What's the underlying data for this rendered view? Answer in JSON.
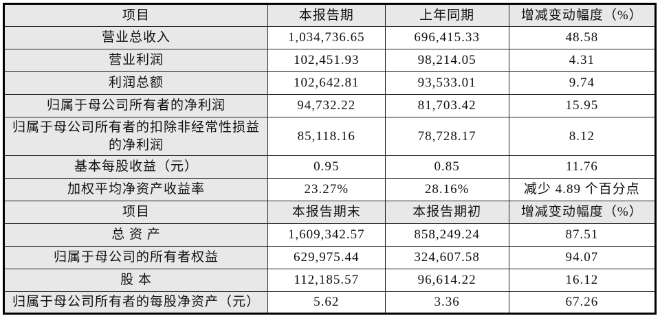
{
  "table": {
    "colors": {
      "header_background": "#e8e8e8",
      "item_column_background": "#e8e8e8",
      "border": "#000000",
      "text": "#111111"
    },
    "rows": [
      {
        "kind": "header",
        "cells": [
          "项目",
          "本报告期",
          "上年同期",
          "增减变动幅度（%）"
        ]
      },
      {
        "kind": "data",
        "cells": [
          "营业总收入",
          "1,034,736.65",
          "696,415.33",
          "48.58"
        ]
      },
      {
        "kind": "data",
        "cells": [
          "营业利润",
          "102,451.93",
          "98,214.05",
          "4.31"
        ]
      },
      {
        "kind": "data",
        "cells": [
          "利润总额",
          "102,642.81",
          "93,533.01",
          "9.74"
        ]
      },
      {
        "kind": "data",
        "cells": [
          "归属于母公司所有者的净利润",
          "94,732.22",
          "81,703.42",
          "15.95"
        ]
      },
      {
        "kind": "data",
        "cells": [
          "归属于母公司所有者的扣除非经常性损益的净利润",
          "85,118.16",
          "78,728.17",
          "8.12"
        ]
      },
      {
        "kind": "data",
        "cells": [
          "基本每股收益（元）",
          "0.95",
          "0.85",
          "11.76"
        ]
      },
      {
        "kind": "data",
        "cells": [
          "加权平均净资产收益率",
          "23.27%",
          "28.16%",
          "减少 4.89 个百分点"
        ]
      },
      {
        "kind": "header",
        "cells": [
          "项目",
          "本报告期末",
          "本报告期初",
          "增减变动幅度（%）"
        ]
      },
      {
        "kind": "data",
        "cells": [
          "总 资 产",
          "1,609,342.57",
          "858,249.24",
          "87.51"
        ]
      },
      {
        "kind": "data",
        "cells": [
          "归属于母公司的所有者权益",
          "629,975.44",
          "324,607.58",
          "94.07"
        ]
      },
      {
        "kind": "data",
        "cells": [
          "股 本",
          "112,185.57",
          "96,614.22",
          "16.12"
        ]
      },
      {
        "kind": "data",
        "cells": [
          "归属于母公司所有者的每股净资产（元）",
          "5.62",
          "3.36",
          "67.26"
        ]
      }
    ]
  }
}
